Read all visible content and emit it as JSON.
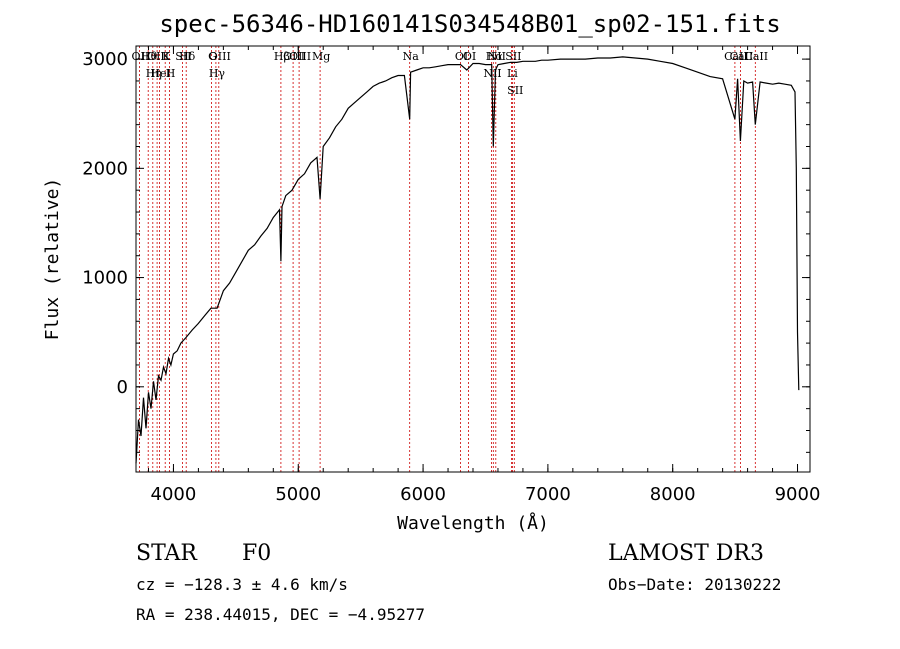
{
  "title": "spec-56346-HD160141S034548B01_sp02-151.fits",
  "chart_data": {
    "type": "line",
    "xlabel": "Wavelength (Å)",
    "ylabel": "Flux (relative)",
    "xlim": [
      3700,
      9100
    ],
    "ylim": [
      -780,
      3120
    ],
    "x_ticks": [
      4000,
      5000,
      6000,
      7000,
      8000,
      9000
    ],
    "y_ticks": [
      0,
      1000,
      2000,
      3000
    ],
    "grid": false,
    "spectrum_x": [
      3700,
      3720,
      3740,
      3760,
      3780,
      3800,
      3820,
      3840,
      3860,
      3880,
      3900,
      3920,
      3940,
      3960,
      3980,
      4000,
      4030,
      4060,
      4100,
      4150,
      4200,
      4250,
      4300,
      4350,
      4400,
      4450,
      4500,
      4550,
      4600,
      4650,
      4700,
      4750,
      4800,
      4850,
      4861,
      4870,
      4900,
      4950,
      5000,
      5050,
      5100,
      5150,
      5175,
      5200,
      5250,
      5300,
      5350,
      5400,
      5450,
      5500,
      5550,
      5600,
      5650,
      5700,
      5750,
      5800,
      5850,
      5893,
      5900,
      5950,
      6000,
      6050,
      6100,
      6150,
      6200,
      6250,
      6300,
      6350,
      6400,
      6450,
      6500,
      6550,
      6563,
      6580,
      6600,
      6650,
      6700,
      6750,
      6800,
      6850,
      6900,
      6950,
      7000,
      7100,
      7200,
      7300,
      7400,
      7500,
      7600,
      7700,
      7800,
      7900,
      8000,
      8100,
      8200,
      8300,
      8400,
      8498,
      8520,
      8542,
      8570,
      8600,
      8640,
      8662,
      8700,
      8750,
      8800,
      8850,
      8900,
      8950,
      8980,
      8990,
      9000,
      9010
    ],
    "spectrum_y": [
      -700,
      -300,
      -450,
      -100,
      -380,
      -50,
      -200,
      50,
      -120,
      100,
      60,
      180,
      120,
      260,
      200,
      300,
      330,
      400,
      450,
      520,
      580,
      650,
      720,
      720,
      880,
      950,
      1050,
      1150,
      1250,
      1300,
      1380,
      1450,
      1550,
      1620,
      1150,
      1650,
      1750,
      1800,
      1900,
      1950,
      2050,
      2100,
      1720,
      2200,
      2280,
      2380,
      2450,
      2550,
      2600,
      2650,
      2700,
      2750,
      2780,
      2800,
      2830,
      2850,
      2850,
      2450,
      2880,
      2900,
      2920,
      2920,
      2930,
      2940,
      2950,
      2950,
      2950,
      2900,
      2960,
      2960,
      2950,
      2950,
      2200,
      2900,
      2950,
      2960,
      2970,
      2970,
      2980,
      2980,
      2980,
      2990,
      2990,
      3000,
      3000,
      3000,
      3010,
      3010,
      3020,
      3010,
      3000,
      2980,
      2960,
      2920,
      2880,
      2840,
      2820,
      2450,
      2820,
      2250,
      2800,
      2780,
      2790,
      2400,
      2790,
      2780,
      2770,
      2780,
      2770,
      2760,
      2700,
      2000,
      500,
      -30
    ],
    "spectral_lines": [
      {
        "label": "Hθ",
        "wavelength": 3798
      },
      {
        "label": "OII",
        "wavelength": 3727
      },
      {
        "label": "OIII",
        "wavelength": 3869
      },
      {
        "label": "K",
        "wavelength": 3934
      },
      {
        "label": "H",
        "wavelength": 3969
      },
      {
        "label": "HeI",
        "wavelength": 3889
      },
      {
        "label": "Hη",
        "wavelength": 3835
      },
      {
        "label": "SII",
        "wavelength": 4072
      },
      {
        "label": "Hδ",
        "wavelength": 4102
      },
      {
        "label": "OIII",
        "wavelength": 4363
      },
      {
        "label": "Hγ",
        "wavelength": 4340
      },
      {
        "label": "G",
        "wavelength": 4305
      },
      {
        "label": "OIII",
        "wavelength": 5007
      },
      {
        "label": "OIII",
        "wavelength": 4959
      },
      {
        "label": "Hβ",
        "wavelength": 4861
      },
      {
        "label": "Mg",
        "wavelength": 5175
      },
      {
        "label": "Na",
        "wavelength": 5893
      },
      {
        "label": "OI",
        "wavelength": 6300
      },
      {
        "label": "OI",
        "wavelength": 6364
      },
      {
        "label": "Hα",
        "wavelength": 6563
      },
      {
        "label": "NII",
        "wavelength": 6548
      },
      {
        "label": "NII",
        "wavelength": 6583
      },
      {
        "label": "SII",
        "wavelength": 6716
      },
      {
        "label": "Li",
        "wavelength": 6708
      },
      {
        "label": "SII",
        "wavelength": 6731
      },
      {
        "label": "CaII",
        "wavelength": 8498
      },
      {
        "label": "CaII",
        "wavelength": 8542
      },
      {
        "label": "CaII",
        "wavelength": 8662
      }
    ]
  },
  "footer": {
    "object_class": "STAR",
    "subclass": "F0",
    "survey": "LAMOST DR3",
    "redshift": "cz = −128.3 ± 4.6 km/s",
    "obs_date": "Obs−Date: 20130222",
    "coords": "RA = 238.44015, DEC =  −4.95277"
  },
  "colors": {
    "spectrum": "#000000",
    "line_markers": "#cc0000",
    "frame": "#000000"
  }
}
